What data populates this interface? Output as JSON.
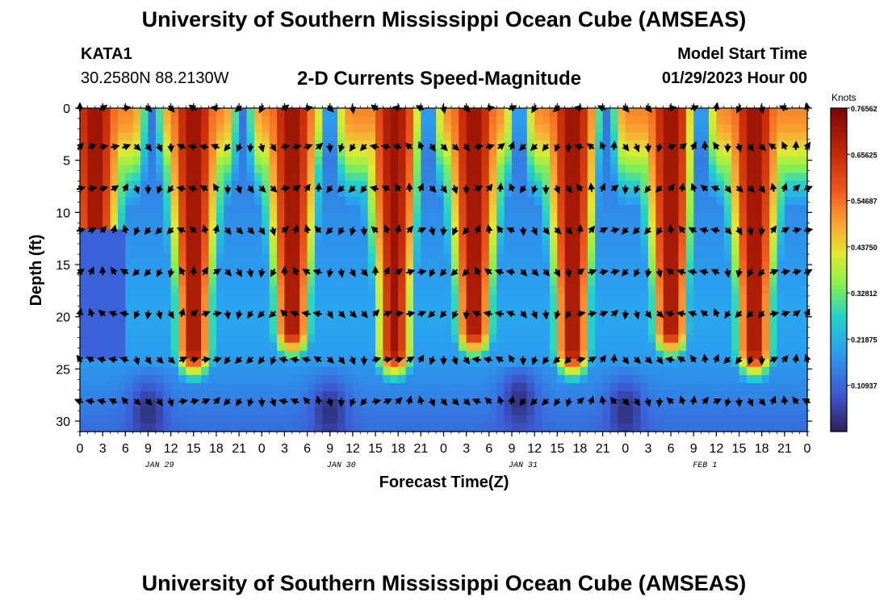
{
  "title": "University of Southern Mississippi Ocean Cube (AMSEAS)",
  "footer_title": "University of Southern Mississippi Ocean Cube (AMSEAS)",
  "header": {
    "station": "KATA1",
    "coordinates": "30.2580N  88.2130W",
    "model_start_label": "Model Start Time",
    "model_start_value": "01/29/2023 Hour 00"
  },
  "chart_data": {
    "type": "heatmap",
    "title": "2-D Currents Speed-Magnitude",
    "xlabel": "Forecast Time(Z)",
    "ylabel": "Depth (ft)",
    "x_range_hours": [
      0,
      96
    ],
    "y_range_ft": [
      0,
      31
    ],
    "x_tick_labels": [
      "0",
      "3",
      "6",
      "9",
      "12",
      "15",
      "18",
      "21",
      "0",
      "3",
      "6",
      "9",
      "12",
      "15",
      "18",
      "21",
      "0",
      "3",
      "6",
      "9",
      "12",
      "15",
      "18",
      "21",
      "0",
      "3",
      "6",
      "9",
      "12",
      "15",
      "18",
      "21",
      "0"
    ],
    "x_tick_hours": [
      0,
      3,
      6,
      9,
      12,
      15,
      18,
      21,
      24,
      27,
      30,
      33,
      36,
      39,
      42,
      45,
      48,
      51,
      54,
      57,
      60,
      63,
      66,
      69,
      72,
      75,
      78,
      81,
      84,
      87,
      90,
      93,
      96
    ],
    "date_labels": [
      {
        "label": "JAN 29",
        "hour": 10.5
      },
      {
        "label": "JAN 30",
        "hour": 34.5
      },
      {
        "label": "JAN 31",
        "hour": 58.5
      },
      {
        "label": "FEB 1",
        "hour": 82.5
      }
    ],
    "y_ticks": [
      0,
      5,
      10,
      15,
      20,
      25,
      30
    ],
    "colorbar": {
      "unit": "Knots",
      "min": 0,
      "max": 0.7656,
      "tick_labels": [
        "0.76562",
        "0.65625",
        "0.54687",
        "0.43750",
        "0.32812",
        "0.21875",
        "0.10937"
      ],
      "tick_values": [
        0.76562,
        0.65625,
        0.54687,
        0.4375,
        0.32812,
        0.21875,
        0.10937
      ]
    },
    "vector_depths_ft": [
      0,
      3.7,
      7.7,
      11.7,
      15.7,
      19.7,
      24.1,
      28.1
    ],
    "vector_hours": [
      0,
      1.5,
      3,
      4.5,
      6,
      7.5,
      9,
      10.5,
      12,
      13.5,
      15,
      16.5,
      18,
      19.5,
      21,
      22.5,
      24,
      25.5,
      27,
      28.5,
      30,
      31.5,
      33,
      34.5,
      36,
      37.5,
      39,
      40.5,
      42,
      43.5,
      45,
      46.5,
      48,
      49.5,
      51,
      52.5,
      54,
      55.5,
      57,
      58.5,
      60,
      61.5,
      63,
      64.5,
      66,
      67.5,
      69,
      70.5,
      72,
      73.5,
      75,
      76.5,
      78,
      79.5,
      81,
      82.5,
      84,
      85.5,
      87,
      88.5,
      90,
      91.5,
      93,
      94.5,
      96
    ],
    "speed_model": {
      "description": "approximate speed (knots) sampled from the rendered field",
      "high_speed_bands_hours": [
        2,
        15,
        28,
        41.5,
        52,
        65,
        78,
        89
      ],
      "low_speed_channels_hours": [
        9.5,
        21.5,
        33,
        46,
        58,
        69.5,
        82
      ],
      "peak_speed": 0.72,
      "deep_min_speed": 0.02
    }
  }
}
